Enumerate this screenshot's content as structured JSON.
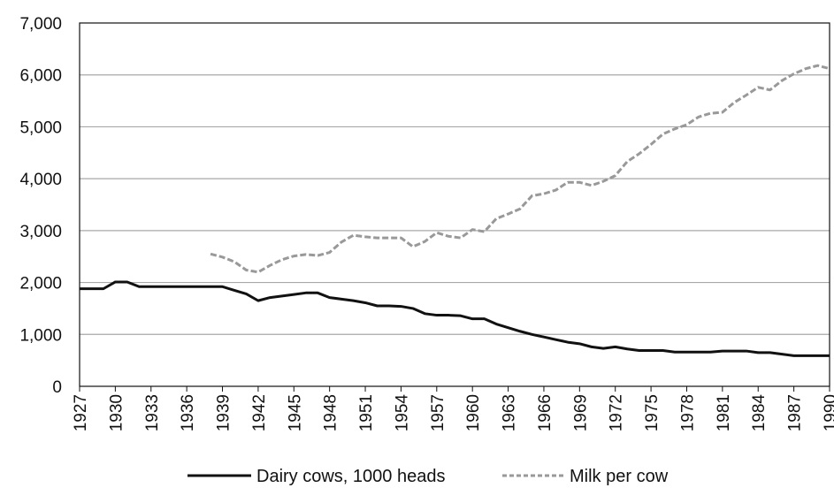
{
  "chart_data": {
    "type": "line",
    "x": [
      1927,
      1928,
      1929,
      1930,
      1931,
      1932,
      1933,
      1934,
      1935,
      1936,
      1937,
      1938,
      1939,
      1940,
      1941,
      1942,
      1943,
      1944,
      1945,
      1946,
      1947,
      1948,
      1949,
      1950,
      1951,
      1952,
      1953,
      1954,
      1955,
      1956,
      1957,
      1958,
      1959,
      1960,
      1961,
      1962,
      1963,
      1964,
      1965,
      1966,
      1967,
      1968,
      1969,
      1970,
      1971,
      1972,
      1973,
      1974,
      1975,
      1976,
      1977,
      1978,
      1979,
      1980,
      1981,
      1982,
      1983,
      1984,
      1985,
      1986,
      1987,
      1988,
      1989,
      1990
    ],
    "series": [
      {
        "name": "Dairy cows, 1000 heads",
        "color": "#111111",
        "style": "solid",
        "values": [
          1880,
          1880,
          1880,
          2010,
          2010,
          1920,
          1920,
          1920,
          1920,
          1920,
          1920,
          1920,
          1920,
          1850,
          1780,
          1650,
          1710,
          1740,
          1770,
          1800,
          1800,
          1710,
          1680,
          1650,
          1610,
          1550,
          1550,
          1540,
          1500,
          1400,
          1370,
          1370,
          1360,
          1300,
          1300,
          1200,
          1130,
          1060,
          1000,
          950,
          900,
          850,
          820,
          760,
          730,
          760,
          720,
          690,
          690,
          690,
          660,
          660,
          660,
          660,
          680,
          680,
          680,
          650,
          650,
          620,
          590,
          590,
          590,
          590
        ]
      },
      {
        "name": "Milk per cow",
        "color": "#999999",
        "style": "dashed",
        "values": [
          null,
          null,
          null,
          null,
          null,
          null,
          null,
          null,
          null,
          null,
          null,
          2550,
          2490,
          2400,
          2240,
          2200,
          2330,
          2440,
          2510,
          2540,
          2520,
          2580,
          2780,
          2910,
          2880,
          2860,
          2860,
          2860,
          2690,
          2790,
          2960,
          2890,
          2860,
          3020,
          2980,
          3230,
          3320,
          3420,
          3670,
          3710,
          3780,
          3930,
          3930,
          3870,
          3950,
          4060,
          4330,
          4480,
          4660,
          4860,
          4960,
          5040,
          5190,
          5260,
          5280,
          5470,
          5610,
          5760,
          5710,
          5890,
          6020,
          6120,
          6180,
          6120
        ]
      }
    ],
    "ylim": [
      0,
      7000
    ],
    "yticks": [
      "0",
      "1,000",
      "2,000",
      "3,000",
      "4,000",
      "5,000",
      "6,000",
      "7,000"
    ],
    "xticks": [
      "1927",
      "1930",
      "1933",
      "1936",
      "1939",
      "1942",
      "1945",
      "1948",
      "1951",
      "1954",
      "1957",
      "1960",
      "1963",
      "1966",
      "1969",
      "1972",
      "1975",
      "1978",
      "1981",
      "1984",
      "1987",
      "1990"
    ],
    "grid": true,
    "legend_position": "bottom-center"
  }
}
